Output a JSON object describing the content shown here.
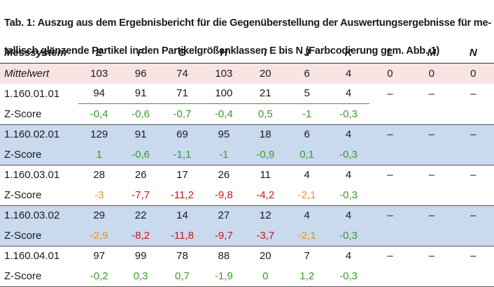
{
  "caption": {
    "line1": "Tab. 1: Auszug aus dem Ergebnisbericht für die Gegenüberstellung der Auswertungsergebnisse für me-",
    "line2": "tallisch glänzende Partikel in den Partikelgrößenklassen E bis N (Farbcodierung gem. Abb. 1)"
  },
  "table": {
    "headers": [
      "Messsystem",
      "E",
      "F",
      "G",
      "H",
      "I",
      "J",
      "K",
      "L",
      "M",
      "N"
    ],
    "mean": {
      "label": "Mittelwert",
      "values": [
        "103",
        "96",
        "74",
        "103",
        "20",
        "6",
        "4",
        "0",
        "0",
        "0"
      ]
    },
    "systems": [
      {
        "name": "1.160.01.01",
        "values": [
          "94",
          "91",
          "71",
          "100",
          "21",
          "5",
          "4",
          "–",
          "–",
          "–"
        ],
        "z_label": "Z-Score",
        "z": [
          "-0,4",
          "-0,6",
          "-0,7",
          "-0,4",
          "0,5",
          "-1",
          "-0,3"
        ],
        "z_colors": [
          "green",
          "green",
          "green",
          "green",
          "green",
          "green",
          "green"
        ]
      },
      {
        "name": "1.160.02.01",
        "values": [
          "129",
          "91",
          "69",
          "95",
          "18",
          "6",
          "4",
          "–",
          "–",
          "–"
        ],
        "z_label": "Z-Score",
        "z": [
          "1",
          "-0,6",
          "-1,1",
          "-1",
          "-0,9",
          "0,1",
          "-0,3"
        ],
        "z_colors": [
          "green",
          "green",
          "green",
          "green",
          "green",
          "green",
          "green"
        ]
      },
      {
        "name": "1.160.03.01",
        "values": [
          "28",
          "26",
          "17",
          "26",
          "11",
          "4",
          "4",
          "–",
          "–",
          "–"
        ],
        "z_label": "Z-Score",
        "z": [
          "-3",
          "-7,7",
          "-11,2",
          "-9,8",
          "-4,2",
          "-2,1",
          "-0,3"
        ],
        "z_colors": [
          "orange",
          "red",
          "red",
          "red",
          "red",
          "orange",
          "green"
        ]
      },
      {
        "name": "1.160.03.02",
        "values": [
          "29",
          "22",
          "14",
          "27",
          "12",
          "4",
          "4",
          "–",
          "–",
          "–"
        ],
        "z_label": "Z-Score",
        "z": [
          "-2,9",
          "-8,2",
          "-11,8",
          "-9,7",
          "-3,7",
          "-2,1",
          "-0,3"
        ],
        "z_colors": [
          "orange",
          "red",
          "red",
          "red",
          "red",
          "orange",
          "green"
        ]
      },
      {
        "name": "1.160.04.01",
        "values": [
          "97",
          "99",
          "78",
          "88",
          "20",
          "7",
          "4",
          "–",
          "–",
          "–"
        ],
        "z_label": "Z-Score",
        "z": [
          "-0,2",
          "0,3",
          "0,7",
          "-1,9",
          "0",
          "1,2",
          "-0,3"
        ],
        "z_colors": [
          "green",
          "green",
          "green",
          "green",
          "green",
          "green",
          "green"
        ]
      }
    ],
    "colors": {
      "green": "#3a9a2a",
      "orange": "#e8912a",
      "red": "#c21a1a",
      "mean_bg": "#f9e4e4",
      "shade_bg": "#c9d9ee"
    }
  }
}
